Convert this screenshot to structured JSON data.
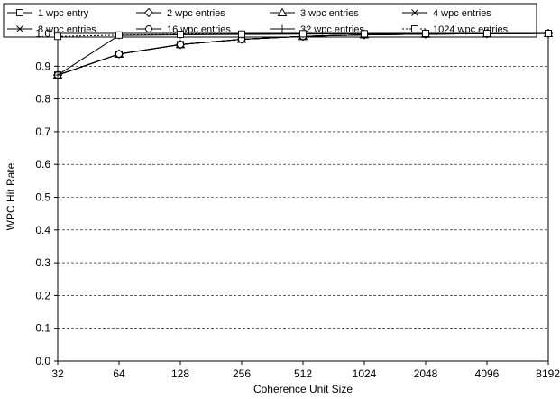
{
  "chart_data": {
    "type": "line",
    "xlabel": "Coherence Unit Size",
    "ylabel": "WPC Hit Rate",
    "categories": [
      "32",
      "64",
      "128",
      "256",
      "512",
      "1024",
      "2048",
      "4096",
      "8192"
    ],
    "ylim": [
      0.0,
      1.0
    ],
    "yticks": [
      "0.0",
      "0.1",
      "0.2",
      "0.3",
      "0.4",
      "0.5",
      "0.6",
      "0.7",
      "0.8",
      "0.9",
      "1.0"
    ],
    "grid": "horizontal dashed",
    "legend_position": "top",
    "series": [
      {
        "name": "1 wpc entry",
        "marker": "square",
        "dash": "solid",
        "values": [
          0.873,
          0.937,
          0.966,
          0.982,
          0.991,
          0.996,
          0.998,
          0.999,
          1.0
        ]
      },
      {
        "name": "2 wpc entries",
        "marker": "diamond",
        "dash": "solid",
        "values": [
          0.873,
          0.937,
          0.966,
          0.982,
          0.991,
          0.996,
          0.998,
          0.999,
          1.0
        ]
      },
      {
        "name": "3 wpc entries",
        "marker": "triangle",
        "dash": "solid",
        "values": [
          0.873,
          0.937,
          0.966,
          0.982,
          0.991,
          0.996,
          0.998,
          0.999,
          1.0
        ]
      },
      {
        "name": "4 wpc entries",
        "marker": "x",
        "dash": "solid",
        "values": [
          0.873,
          0.937,
          0.966,
          0.982,
          0.991,
          0.996,
          0.998,
          0.999,
          1.0
        ]
      },
      {
        "name": "8 wpc entries",
        "marker": "asterisk",
        "dash": "solid",
        "values": [
          0.873,
          0.937,
          0.966,
          0.982,
          0.991,
          0.996,
          0.998,
          0.999,
          1.0
        ]
      },
      {
        "name": "16 wpc entries",
        "marker": "circle",
        "dash": "solid",
        "values": [
          0.873,
          0.937,
          0.966,
          0.982,
          0.991,
          0.996,
          0.998,
          0.999,
          1.0
        ]
      },
      {
        "name": "32 wpc entries",
        "marker": "plus",
        "dash": "solid",
        "values": [
          0.873,
          0.994,
          0.996,
          0.997,
          0.998,
          0.999,
          0.999,
          1.0,
          1.0
        ]
      },
      {
        "name": "1024 wpc entries",
        "marker": "square",
        "dash": "dashed",
        "values": [
          0.991,
          0.995,
          0.997,
          0.998,
          0.999,
          0.999,
          1.0,
          1.0,
          1.0
        ]
      }
    ]
  }
}
